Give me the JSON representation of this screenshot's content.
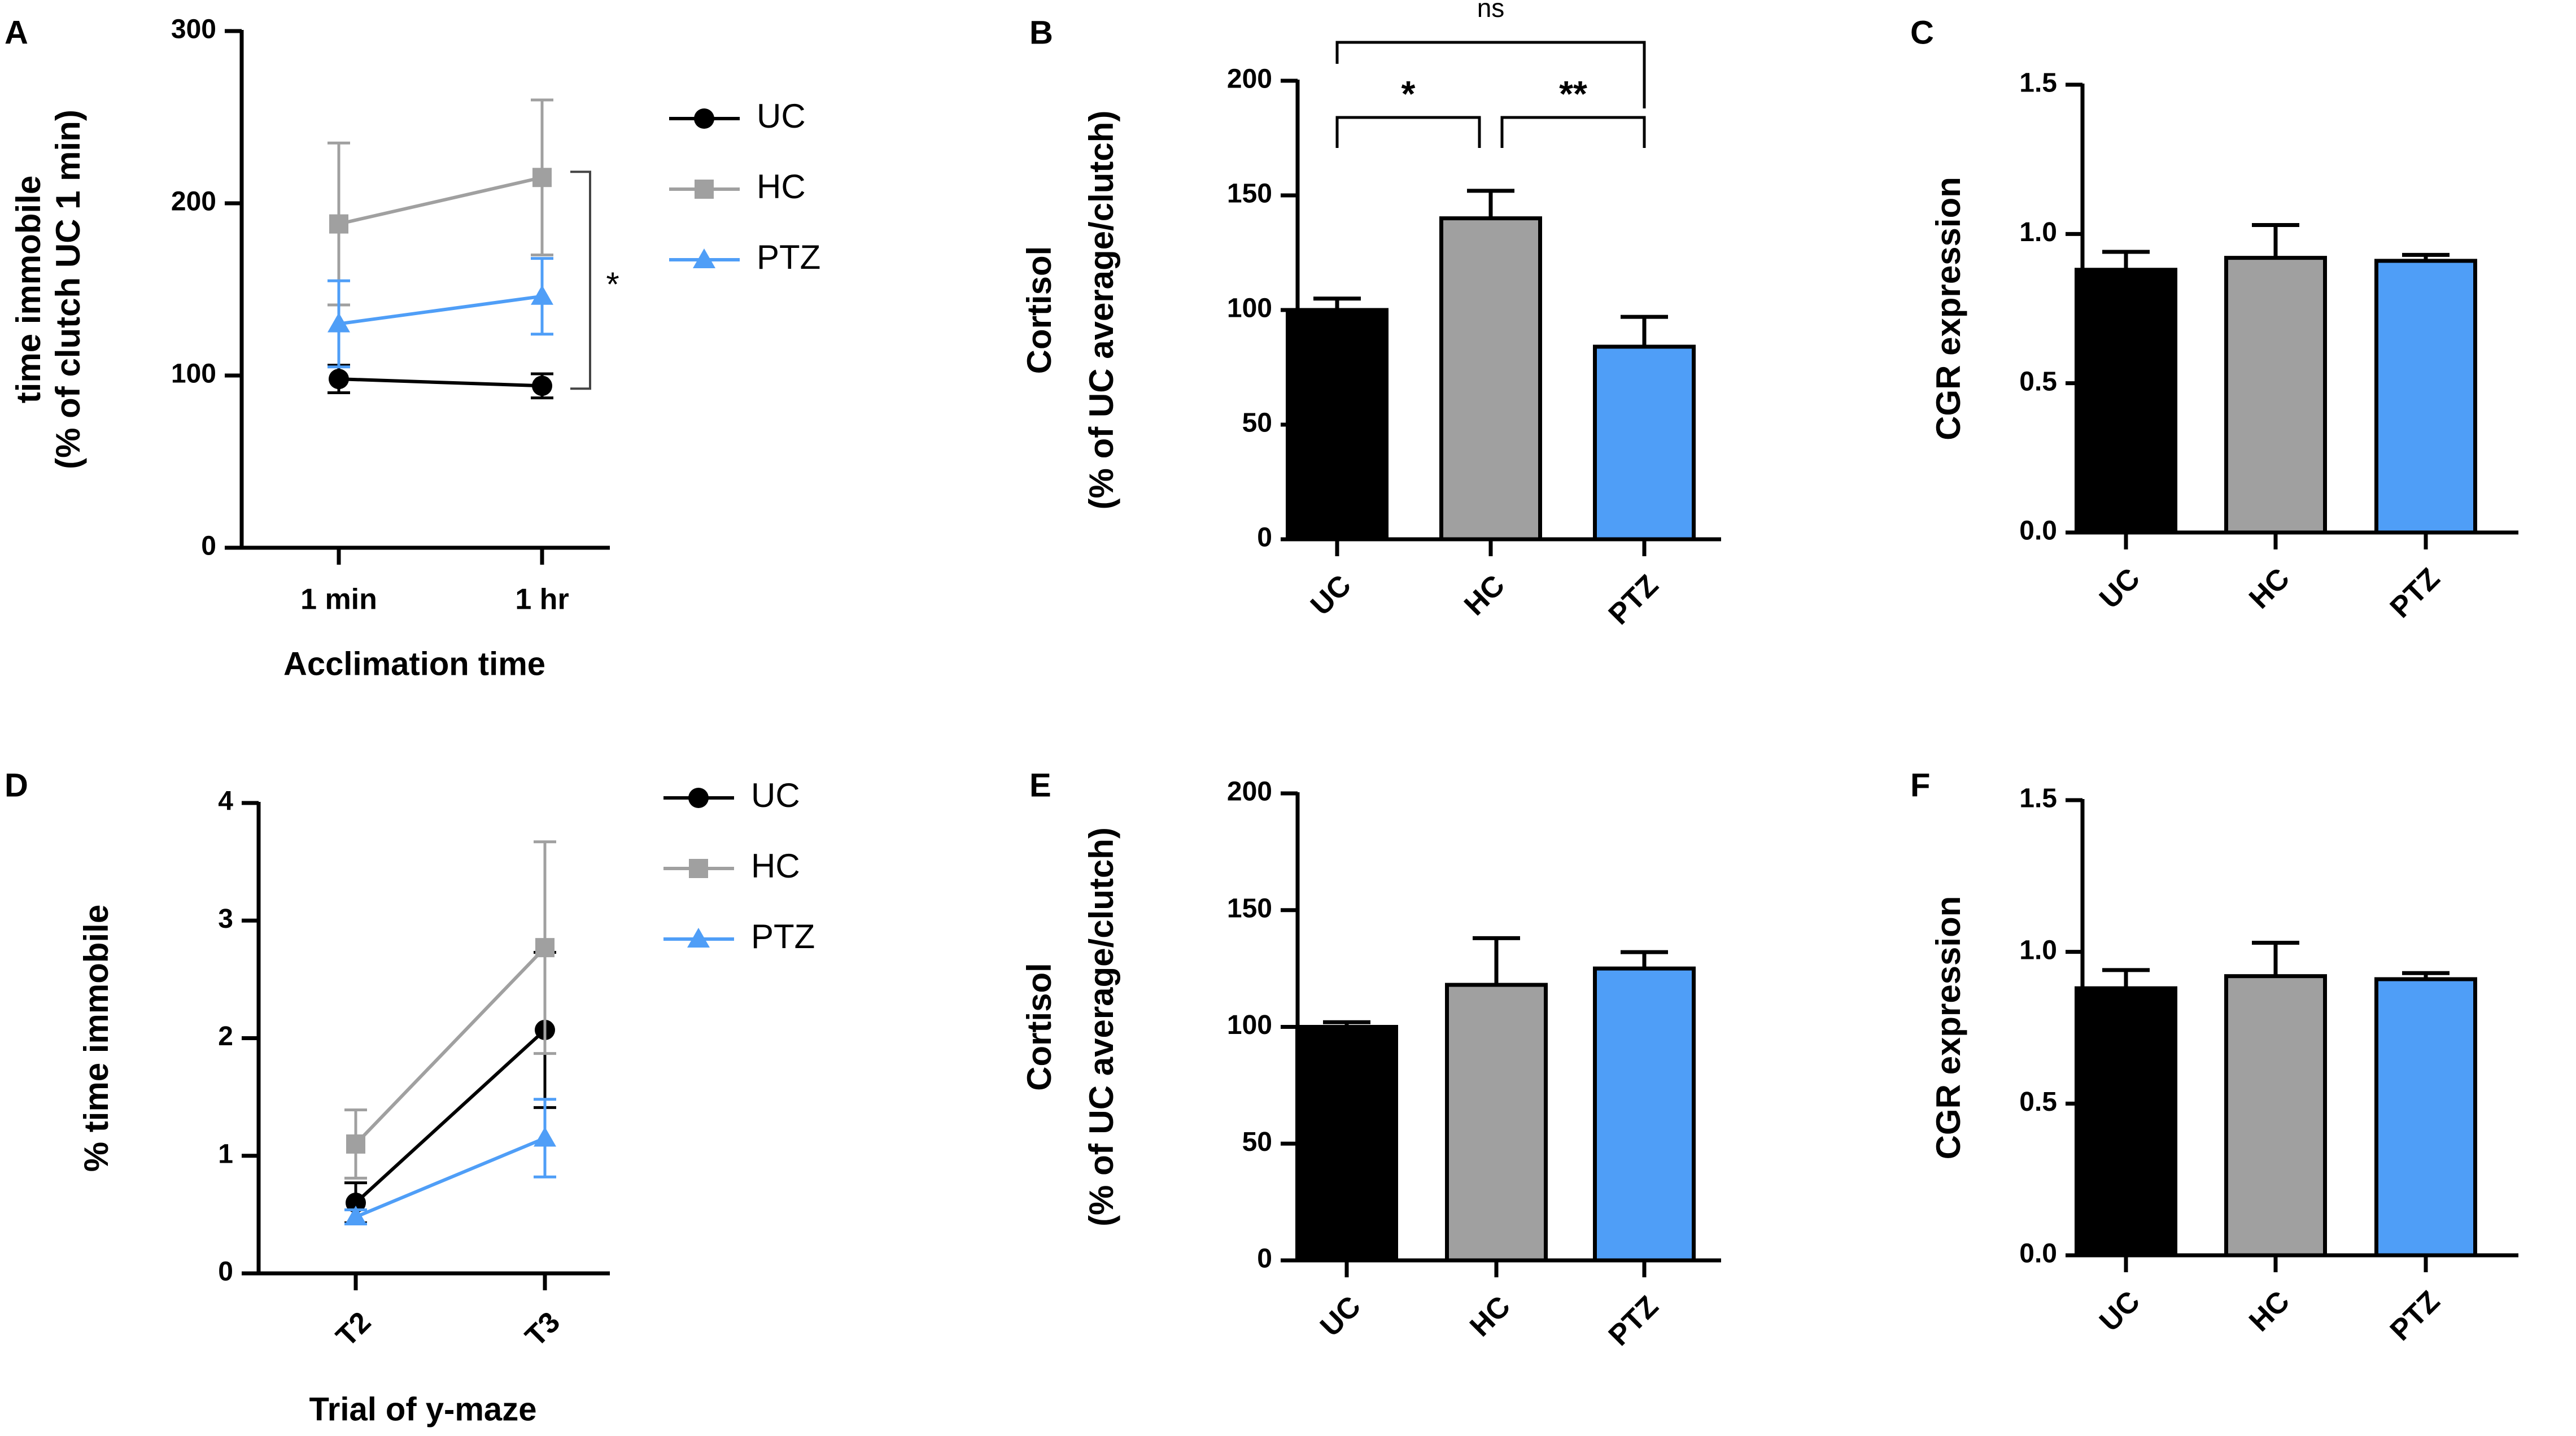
{
  "colors": {
    "UC": "#000000",
    "HC": "#a0a0a0",
    "PTZ": "#4f9ef7",
    "axis": "#000000"
  },
  "chart_data": [
    {
      "id": "A",
      "panel_label": "A",
      "type": "line",
      "title": "",
      "xlabel": "Acclimation time",
      "ylabel": [
        "time immobile",
        "(% of clutch UC 1 min)"
      ],
      "categories": [
        "1 min",
        "1 hr"
      ],
      "ylim": [
        0,
        300
      ],
      "yticks": [
        0,
        100,
        200,
        300
      ],
      "ytick_labels": [
        "0",
        "100",
        "200",
        "300"
      ],
      "series": [
        {
          "name": "UC",
          "marker": "circle",
          "values": [
            98,
            94
          ],
          "err": [
            8,
            7
          ]
        },
        {
          "name": "HC",
          "marker": "square",
          "values": [
            188,
            215
          ],
          "err": [
            47,
            45
          ]
        },
        {
          "name": "PTZ",
          "marker": "triangle",
          "values": [
            130,
            146
          ],
          "err": [
            25,
            22
          ]
        }
      ],
      "legend": {
        "position": "right",
        "entries": [
          "UC",
          "HC",
          "PTZ"
        ]
      },
      "annotation": "*"
    },
    {
      "id": "B",
      "panel_label": "B",
      "type": "bar",
      "title": "",
      "xlabel": "",
      "ylabel": [
        "Cortisol",
        "(% of UC average/clutch)"
      ],
      "categories": [
        "UC",
        "HC",
        "PTZ"
      ],
      "values": [
        100,
        140,
        84
      ],
      "err": [
        5,
        12,
        13
      ],
      "ylim": [
        0,
        200
      ],
      "yticks": [
        0,
        50,
        100,
        150,
        200
      ],
      "ytick_labels": [
        "0",
        "50",
        "100",
        "150",
        "200"
      ],
      "significance": [
        {
          "pair": [
            "UC",
            "HC"
          ],
          "label": "*"
        },
        {
          "pair": [
            "HC",
            "PTZ"
          ],
          "label": "**"
        },
        {
          "pair": [
            "UC",
            "PTZ"
          ],
          "label": "ns"
        }
      ]
    },
    {
      "id": "C",
      "panel_label": "C",
      "type": "bar",
      "title": "",
      "xlabel": "",
      "ylabel": [
        "CGR expression"
      ],
      "categories": [
        "UC",
        "HC",
        "PTZ"
      ],
      "values": [
        0.88,
        0.92,
        0.91
      ],
      "err": [
        0.06,
        0.11,
        0.02
      ],
      "ylim": [
        0,
        1.5
      ],
      "yticks": [
        0,
        0.5,
        1.0,
        1.5
      ],
      "ytick_labels": [
        "0.0",
        "0.5",
        "1.0",
        "1.5"
      ]
    },
    {
      "id": "D",
      "panel_label": "D",
      "type": "line",
      "title": "",
      "xlabel": "Trial of y-maze",
      "ylabel": [
        "% time immobile"
      ],
      "categories": [
        "T2",
        "T3"
      ],
      "ylim": [
        0,
        4
      ],
      "yticks": [
        0,
        1,
        2,
        3,
        4
      ],
      "ytick_labels": [
        "0",
        "1",
        "2",
        "3",
        "4"
      ],
      "series": [
        {
          "name": "UC",
          "marker": "circle",
          "values": [
            0.6,
            2.07
          ],
          "err": [
            0.17,
            0.66
          ]
        },
        {
          "name": "HC",
          "marker": "square",
          "values": [
            1.1,
            2.77
          ],
          "err": [
            0.29,
            0.9
          ]
        },
        {
          "name": "PTZ",
          "marker": "triangle",
          "values": [
            0.48,
            1.15
          ],
          "err": [
            0.06,
            0.33
          ]
        }
      ],
      "legend": {
        "position": "right",
        "entries": [
          "UC",
          "HC",
          "PTZ"
        ]
      }
    },
    {
      "id": "E",
      "panel_label": "E",
      "type": "bar",
      "title": "",
      "xlabel": "",
      "ylabel": [
        "Cortisol",
        "(% of UC average/clutch)"
      ],
      "categories": [
        "UC",
        "HC",
        "PTZ"
      ],
      "values": [
        100,
        118,
        125
      ],
      "err": [
        2,
        20,
        7
      ],
      "ylim": [
        0,
        200
      ],
      "yticks": [
        0,
        50,
        100,
        150,
        200
      ],
      "ytick_labels": [
        "0",
        "50",
        "100",
        "150",
        "200"
      ]
    },
    {
      "id": "F",
      "panel_label": "F",
      "type": "bar",
      "title": "",
      "xlabel": "",
      "ylabel": [
        "CGR expression"
      ],
      "categories": [
        "UC",
        "HC",
        "PTZ"
      ],
      "values": [
        0.88,
        0.92,
        0.91
      ],
      "err": [
        0.06,
        0.11,
        0.02
      ],
      "ylim": [
        0,
        1.5
      ],
      "yticks": [
        0,
        0.5,
        1.0,
        1.5
      ],
      "ytick_labels": [
        "0.0",
        "0.5",
        "1.0",
        "1.5"
      ]
    }
  ]
}
